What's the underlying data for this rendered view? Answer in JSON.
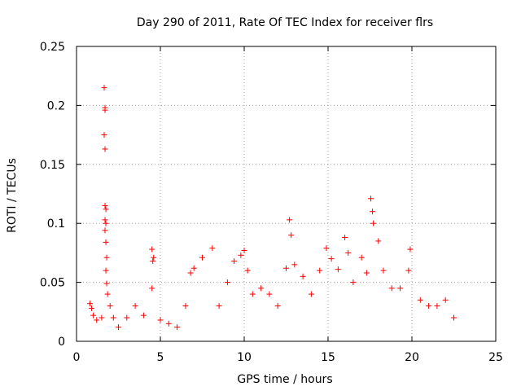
{
  "chart_data": {
    "type": "scatter",
    "title": "Day 290 of 2011, Rate Of TEC Index for receiver flrs",
    "xlabel": "GPS time / hours",
    "ylabel": "ROTI / TECUs",
    "xlim": [
      0,
      25
    ],
    "ylim": [
      0,
      0.25
    ],
    "xticks": [
      0,
      5,
      10,
      15,
      20,
      25
    ],
    "yticks": [
      0,
      0.05,
      0.1,
      0.15,
      0.2,
      0.25
    ],
    "xtick_labels": [
      "0",
      "5",
      "10",
      "15",
      "20",
      "25"
    ],
    "ytick_labels": [
      "0",
      "0.05",
      "0.1",
      "0.15",
      "0.2",
      "0.25"
    ],
    "grid": true,
    "marker": "+",
    "series": [
      {
        "name": "ROTI",
        "color": "#ff0000",
        "points": [
          [
            0.8,
            0.032
          ],
          [
            0.9,
            0.028
          ],
          [
            1.0,
            0.022
          ],
          [
            1.2,
            0.018
          ],
          [
            1.5,
            0.02
          ],
          [
            1.65,
            0.215
          ],
          [
            1.7,
            0.198
          ],
          [
            1.7,
            0.196
          ],
          [
            1.65,
            0.175
          ],
          [
            1.7,
            0.163
          ],
          [
            1.7,
            0.115
          ],
          [
            1.75,
            0.112
          ],
          [
            1.7,
            0.103
          ],
          [
            1.75,
            0.1
          ],
          [
            1.7,
            0.094
          ],
          [
            1.75,
            0.084
          ],
          [
            1.8,
            0.071
          ],
          [
            1.75,
            0.06
          ],
          [
            1.8,
            0.049
          ],
          [
            1.85,
            0.04
          ],
          [
            2.0,
            0.03
          ],
          [
            2.2,
            0.02
          ],
          [
            2.5,
            0.012
          ],
          [
            3.0,
            0.02
          ],
          [
            3.5,
            0.03
          ],
          [
            4.0,
            0.022
          ],
          [
            4.5,
            0.078
          ],
          [
            4.6,
            0.071
          ],
          [
            4.55,
            0.068
          ],
          [
            4.5,
            0.045
          ],
          [
            5.0,
            0.018
          ],
          [
            5.5,
            0.015
          ],
          [
            6.0,
            0.012
          ],
          [
            6.5,
            0.03
          ],
          [
            6.8,
            0.058
          ],
          [
            7.0,
            0.062
          ],
          [
            7.5,
            0.071
          ],
          [
            8.1,
            0.079
          ],
          [
            8.5,
            0.03
          ],
          [
            9.0,
            0.05
          ],
          [
            9.4,
            0.068
          ],
          [
            9.8,
            0.073
          ],
          [
            10.0,
            0.077
          ],
          [
            10.2,
            0.06
          ],
          [
            10.5,
            0.04
          ],
          [
            11.0,
            0.045
          ],
          [
            11.5,
            0.04
          ],
          [
            12.0,
            0.03
          ],
          [
            12.5,
            0.062
          ],
          [
            12.7,
            0.103
          ],
          [
            12.8,
            0.09
          ],
          [
            13.0,
            0.065
          ],
          [
            13.5,
            0.055
          ],
          [
            14.0,
            0.04
          ],
          [
            14.5,
            0.06
          ],
          [
            14.9,
            0.079
          ],
          [
            15.2,
            0.07
          ],
          [
            15.6,
            0.061
          ],
          [
            16.0,
            0.088
          ],
          [
            16.2,
            0.075
          ],
          [
            16.5,
            0.05
          ],
          [
            17.0,
            0.071
          ],
          [
            17.3,
            0.058
          ],
          [
            17.55,
            0.121
          ],
          [
            17.65,
            0.11
          ],
          [
            17.7,
            0.1
          ],
          [
            18.0,
            0.085
          ],
          [
            18.3,
            0.06
          ],
          [
            18.8,
            0.045
          ],
          [
            19.3,
            0.045
          ],
          [
            19.8,
            0.06
          ],
          [
            19.9,
            0.078
          ],
          [
            20.5,
            0.035
          ],
          [
            21.0,
            0.03
          ],
          [
            21.5,
            0.03
          ],
          [
            22.0,
            0.035
          ],
          [
            22.5,
            0.02
          ]
        ]
      }
    ]
  }
}
